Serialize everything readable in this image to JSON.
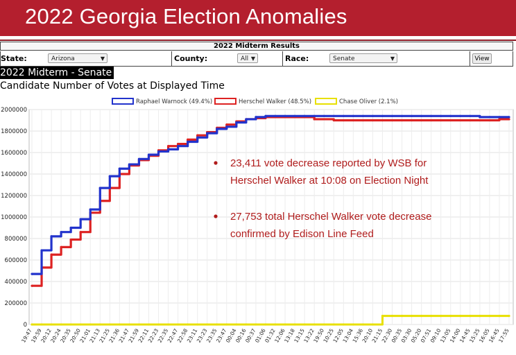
{
  "banner": {
    "title": "2022 Georgia Election Anomalies"
  },
  "panel": {
    "title": "2022 Midterm Results"
  },
  "filters": {
    "state_label": "State:",
    "state_value": "Arizona",
    "county_label": "County:",
    "county_value": "All",
    "race_label": "Race:",
    "race_value": "Senate",
    "view_button": "View"
  },
  "heading": "2022 Midterm - Senate",
  "subheading": "Candidate Number of Votes at Displayed Time",
  "annotations": [
    "23,411 vote decrease reported by WSB for Herschel Walker at 10:08 on Election Night",
    "27,753 total  Herschel Walker vote decrease confirmed by Edison Line Feed"
  ],
  "annotation_lines": [
    [
      "23,411 vote decrease reported by WSB for",
      "Herschel Walker at 10:08 on Election Night"
    ],
    [
      "27,753 total  Herschel Walker vote decrease",
      "confirmed by Edison Line Feed"
    ]
  ],
  "colors": {
    "banner": "#b41f2e",
    "warnock": "#2233cc",
    "walker": "#dd2222",
    "oliver": "#e8e000",
    "annotation": "#b01c1c"
  },
  "chart_data": {
    "type": "line",
    "ylim": [
      0,
      2000000
    ],
    "yticks": [
      0,
      200000,
      400000,
      600000,
      800000,
      1000000,
      1200000,
      1400000,
      1600000,
      1800000,
      2000000
    ],
    "ytick_labels": [
      "0",
      "200000",
      "400000",
      "600000",
      "800000",
      "1000000",
      "1200000",
      "1400000",
      "1600000",
      "1800000",
      "2000000"
    ],
    "x": [
      "19:47",
      "19:59",
      "20:12",
      "20:24",
      "20:35",
      "20:50",
      "21:01",
      "21:13",
      "21:25",
      "21:36",
      "21:47",
      "21:59",
      "22:11",
      "22:23",
      "22:35",
      "22:47",
      "22:58",
      "23:11",
      "23:23",
      "23:35",
      "23:47",
      "00:04",
      "00:16",
      "00:37",
      "01:06",
      "01:32",
      "12:06",
      "13:18",
      "13:15",
      "13:22",
      "19:50",
      "10:25",
      "12:05",
      "13:04",
      "15:36",
      "20:10",
      "21:15",
      "22:30",
      "00:35",
      "03:30",
      "05:20",
      "07:51",
      "09:10",
      "13:05",
      "14:00",
      "14:45",
      "15:25",
      "16:05",
      "16:45",
      "17:55"
    ],
    "legend_position": "top",
    "grid": true,
    "series": [
      {
        "name": "Raphael Warnock (49.4%)",
        "values": [
          470000,
          690000,
          820000,
          860000,
          900000,
          980000,
          1070000,
          1270000,
          1380000,
          1450000,
          1490000,
          1540000,
          1580000,
          1610000,
          1630000,
          1660000,
          1700000,
          1740000,
          1780000,
          1820000,
          1840000,
          1880000,
          1910000,
          1930000,
          1940000,
          1940000,
          1940000,
          1940000,
          1940000,
          1940000,
          1940000,
          1940000,
          1940000,
          1940000,
          1940000,
          1940000,
          1940000,
          1940000,
          1940000,
          1940000,
          1940000,
          1940000,
          1940000,
          1940000,
          1940000,
          1940000,
          1930000,
          1930000,
          1930000,
          1930000
        ]
      },
      {
        "name": "Herschel Walker (48.5%)",
        "values": [
          360000,
          530000,
          650000,
          720000,
          790000,
          860000,
          1040000,
          1150000,
          1270000,
          1400000,
          1480000,
          1530000,
          1570000,
          1620000,
          1660000,
          1680000,
          1720000,
          1760000,
          1790000,
          1830000,
          1860000,
          1890000,
          1910000,
          1920000,
          1930000,
          1930000,
          1930000,
          1930000,
          1930000,
          1910000,
          1910000,
          1900000,
          1900000,
          1900000,
          1900000,
          1900000,
          1900000,
          1900000,
          1900000,
          1900000,
          1900000,
          1900000,
          1900000,
          1900000,
          1900000,
          1900000,
          1900000,
          1900000,
          1910000,
          1910000
        ]
      },
      {
        "name": "Chase Oliver (2.1%)",
        "values": [
          0,
          0,
          0,
          0,
          0,
          0,
          0,
          0,
          0,
          0,
          0,
          0,
          0,
          0,
          0,
          0,
          0,
          0,
          0,
          0,
          0,
          0,
          0,
          0,
          0,
          0,
          0,
          0,
          0,
          0,
          0,
          0,
          0,
          0,
          0,
          0,
          80000,
          80000,
          80000,
          80000,
          80000,
          80000,
          80000,
          80000,
          80000,
          80000,
          80000,
          80000,
          80000,
          80000
        ]
      }
    ]
  }
}
